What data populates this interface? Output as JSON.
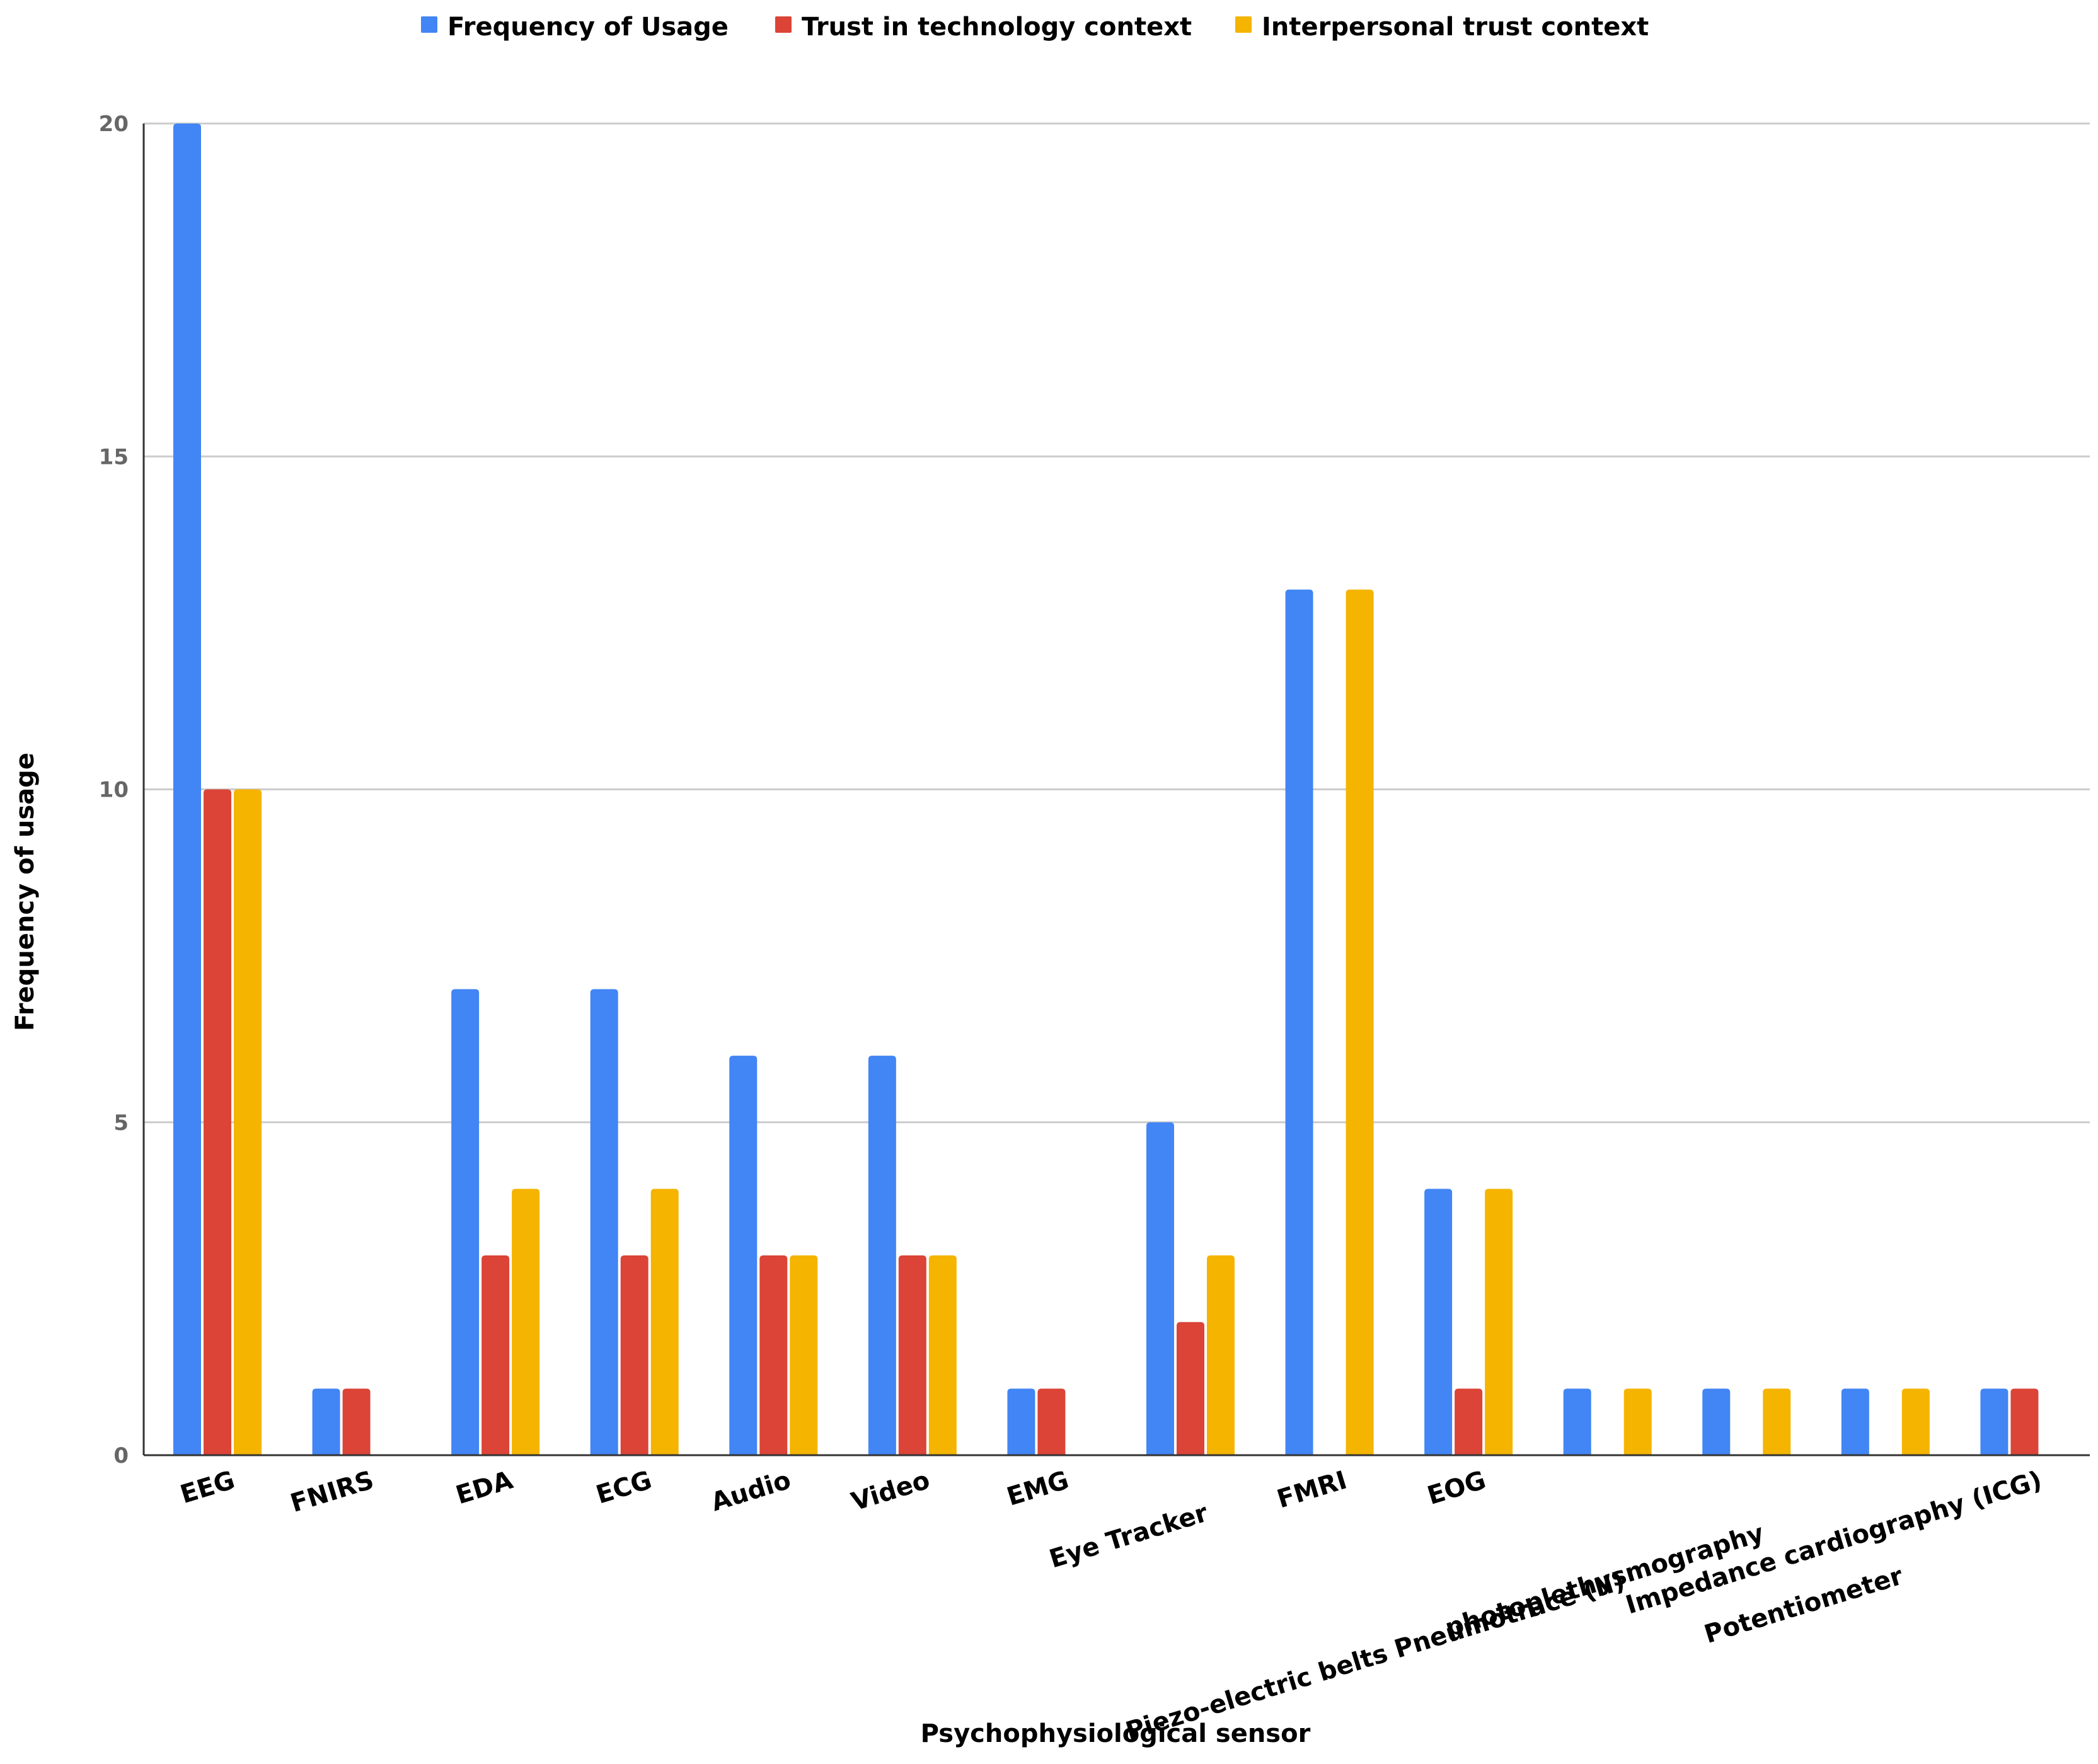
{
  "chart_data": {
    "type": "bar",
    "title": "",
    "xlabel": "Psychophysiological sensor",
    "ylabel": "Frequency of usage",
    "ylim": [
      0,
      20
    ],
    "yticks": [
      0,
      5,
      10,
      15,
      20
    ],
    "grid": true,
    "legend_position": "top-center",
    "categories": [
      "EEG",
      "FNIRS",
      "EDA",
      "ECG",
      "Audio",
      "Video",
      "EMG",
      "Eye Tracker",
      "FMRI",
      "EOG",
      "Piezo-electric belts Pneumotrace (II)",
      "photoplethysmography",
      "Potentiometer",
      "Impedance cardiography (ICG)"
    ],
    "series": [
      {
        "name": "Frequency of Usage",
        "color": "#4285F4",
        "values": [
          20,
          1,
          7,
          7,
          6,
          6,
          1,
          5,
          13,
          4,
          1,
          1,
          1,
          1
        ]
      },
      {
        "name": "Trust in technology context",
        "color": "#DB4437",
        "values": [
          10,
          1,
          3,
          3,
          3,
          3,
          1,
          2,
          0,
          1,
          0,
          0,
          0,
          1
        ]
      },
      {
        "name": "Interpersonal trust context",
        "color": "#F4B400",
        "values": [
          10,
          0,
          4,
          4,
          3,
          3,
          0,
          3,
          13,
          4,
          1,
          1,
          1,
          0
        ]
      }
    ]
  }
}
